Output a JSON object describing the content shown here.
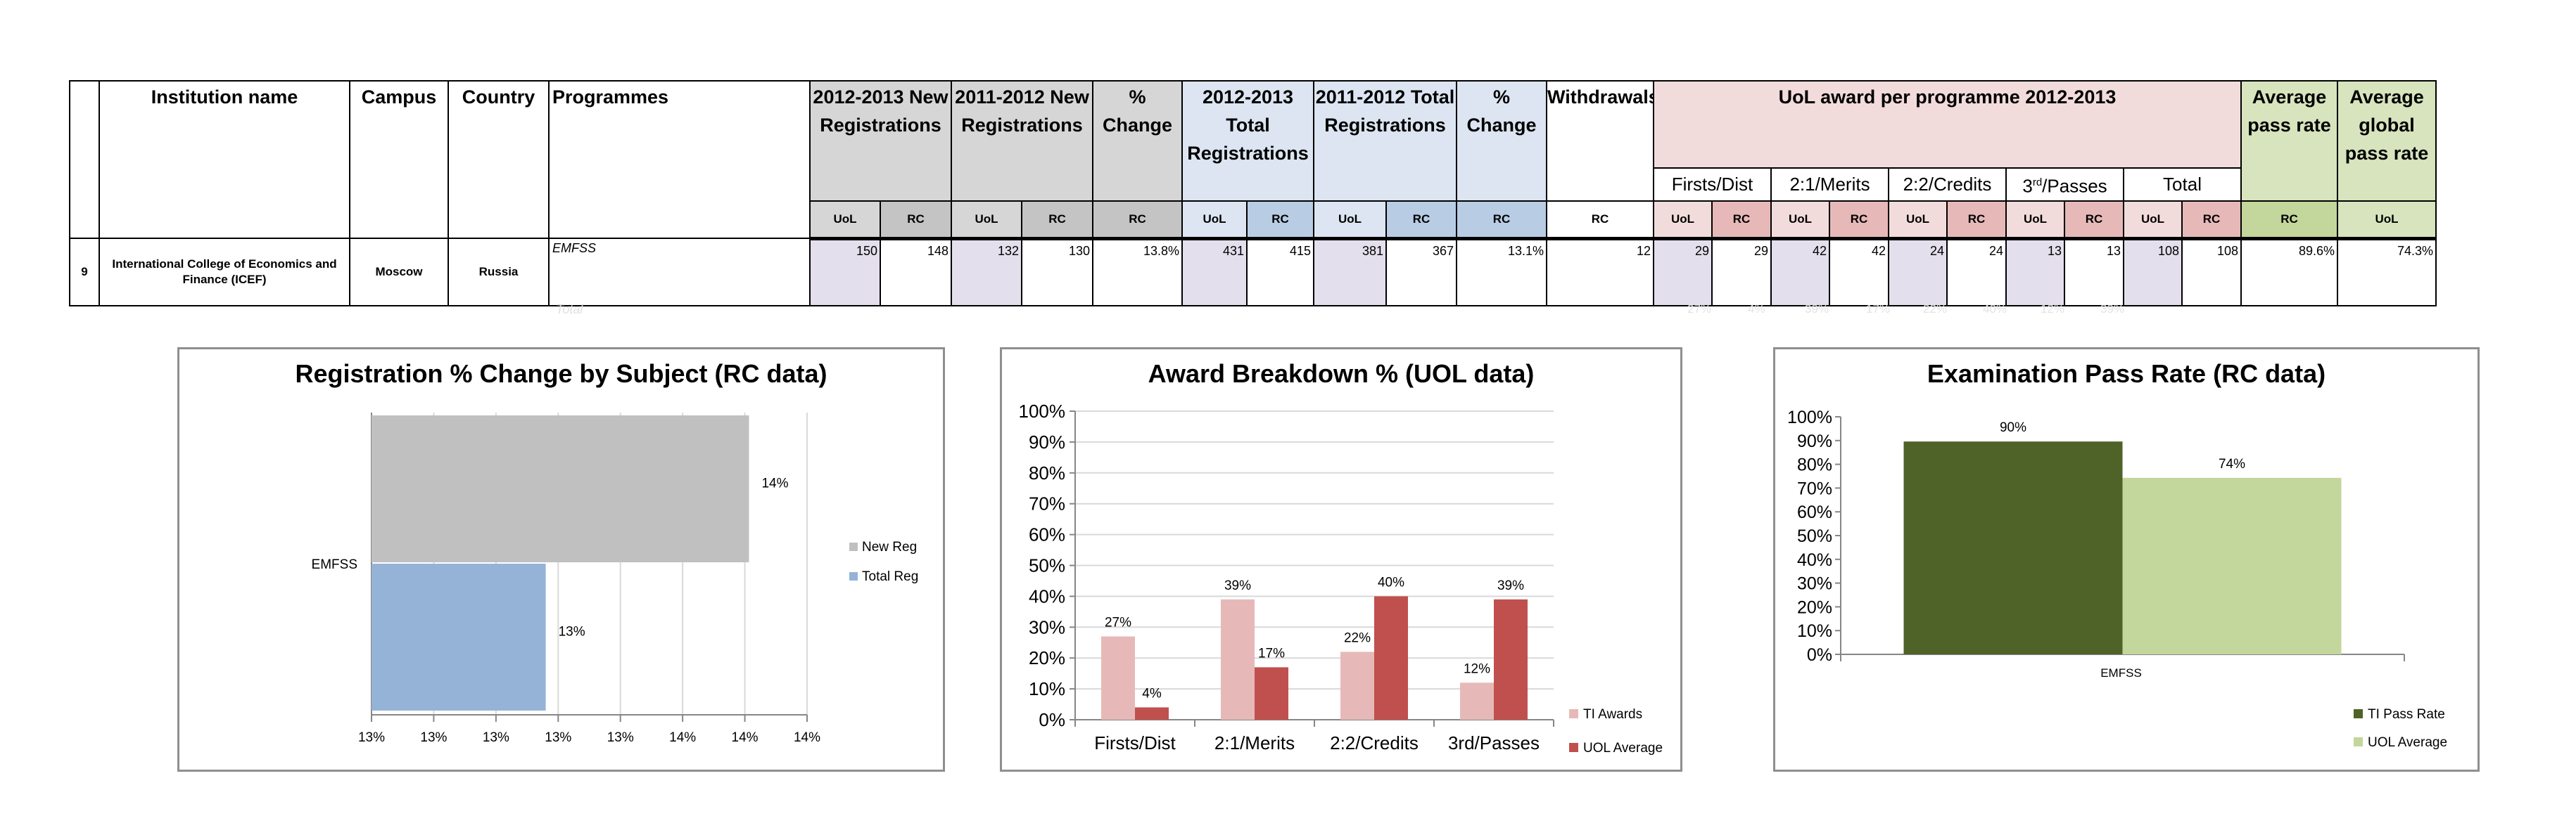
{
  "table": {
    "headers": {
      "institution": "Institution name",
      "campus": "Campus",
      "country": "Country",
      "programmes": "Programmes",
      "new_reg_1213": "2012-2013 New Registrations",
      "new_reg_1112": "2011-2012 New Registrations",
      "pct_change_new": "% Change",
      "total_reg_1213": "2012-2013 Total Registrations",
      "total_reg_1112": "2011-2012 Total Registrations",
      "pct_change_total": "% Change",
      "withdrawals": "Withdrawals",
      "uol_award": "UoL award per programme 2012-2013",
      "avg_pass_rate": "Average pass rate",
      "avg_global_pass_rate": "Average global pass rate"
    },
    "award_subheaders": [
      "Firsts/Dist",
      "2:1/Merits",
      "2:2/Credits",
      "3rd/Passes",
      "Total"
    ],
    "third_base": "3",
    "third_sup": "rd",
    "third_rest": "/Passes",
    "col_codes": [
      "UoL",
      "RC",
      "UoL",
      "RC",
      "RC",
      "UoL",
      "RC",
      "UoL",
      "RC",
      "RC",
      "RC",
      "UoL",
      "RC",
      "UoL",
      "RC",
      "UoL",
      "RC",
      "UoL",
      "RC",
      "UoL",
      "RC",
      "RC",
      "UoL"
    ],
    "row": {
      "number": "9",
      "institution": "International College of Economics and Finance (ICEF)",
      "campus": "Moscow",
      "country": "Russia",
      "programme": "EMFSS",
      "values": [
        "150",
        "148",
        "132",
        "130",
        "13.8%",
        "431",
        "415",
        "381",
        "367",
        "13.1%",
        "12",
        "29",
        "29",
        "42",
        "42",
        "24",
        "24",
        "13",
        "13",
        "108",
        "108",
        "89.6%",
        "74.3%"
      ]
    },
    "total_label": "Total",
    "total_faint_values": [
      "27%",
      "4%",
      "39%",
      "17%",
      "22%",
      "40%",
      "12%",
      "39%"
    ]
  },
  "chart_data": [
    {
      "type": "bar",
      "orientation": "horizontal",
      "title": "Registration % Change  by Subject (RC data)",
      "categories": [
        "EMFSS"
      ],
      "series": [
        {
          "name": "New Reg",
          "values": [
            0.138
          ],
          "label": "14%",
          "color": "#c0c0c0"
        },
        {
          "name": "Total Reg",
          "values": [
            0.131
          ],
          "label": "13%",
          "color": "#95b3d7"
        }
      ],
      "xlim": [
        0.125,
        0.14
      ],
      "x_tick_labels": [
        "13%",
        "13%",
        "13%",
        "13%",
        "13%",
        "14%",
        "14%",
        "14%"
      ],
      "grid": true,
      "legend": "right"
    },
    {
      "type": "bar",
      "title": "Award Breakdown %  (UOL data)",
      "categories": [
        "Firsts/Dist",
        "2:1/Merits",
        "2:2/Credits",
        "3rd/Passes"
      ],
      "series": [
        {
          "name": "TI Awards",
          "values": [
            27,
            39,
            22,
            12
          ],
          "labels": [
            "27%",
            "39%",
            "22%",
            "12%"
          ],
          "color": "#e6b9b8"
        },
        {
          "name": "UOL Average",
          "values": [
            4,
            17,
            40,
            39
          ],
          "labels": [
            "4%",
            "17%",
            "40%",
            "39%"
          ],
          "color": "#c0504d"
        }
      ],
      "ylim": [
        0,
        100
      ],
      "y_tick_labels": [
        "0%",
        "10%",
        "20%",
        "30%",
        "40%",
        "50%",
        "60%",
        "70%",
        "80%",
        "90%",
        "100%"
      ],
      "grid": true,
      "legend": "right"
    },
    {
      "type": "bar",
      "title": "Examination Pass Rate (RC data)",
      "categories": [
        "EMFSS"
      ],
      "series": [
        {
          "name": "TI Pass Rate",
          "values": [
            89.6
          ],
          "label": "90%",
          "color": "#4f6228"
        },
        {
          "name": "UOL Average",
          "values": [
            74.3
          ],
          "label": "74%",
          "color": "#c3d69b"
        }
      ],
      "ylim": [
        0,
        100
      ],
      "y_tick_labels": [
        "0%",
        "10%",
        "20%",
        "30%",
        "40%",
        "50%",
        "60%",
        "70%",
        "80%",
        "90%",
        "100%"
      ],
      "grid": false,
      "legend": "right"
    }
  ]
}
